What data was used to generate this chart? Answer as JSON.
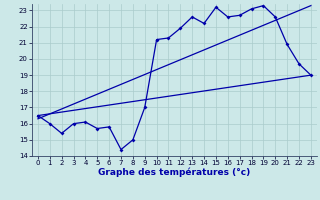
{
  "xlabel": "Graphe des températures (°c)",
  "bg_color": "#cce8e8",
  "line_color": "#0000aa",
  "grid_color": "#aacccc",
  "xlim": [
    -0.5,
    23.5
  ],
  "ylim": [
    14,
    23.4
  ],
  "xticks": [
    0,
    1,
    2,
    3,
    4,
    5,
    6,
    7,
    8,
    9,
    10,
    11,
    12,
    13,
    14,
    15,
    16,
    17,
    18,
    19,
    20,
    21,
    22,
    23
  ],
  "yticks": [
    14,
    15,
    16,
    17,
    18,
    19,
    20,
    21,
    22,
    23
  ],
  "main_x": [
    0,
    1,
    2,
    3,
    4,
    5,
    6,
    7,
    8,
    9,
    10,
    11,
    12,
    13,
    14,
    15,
    16,
    17,
    18,
    19,
    20,
    21,
    22,
    23
  ],
  "main_y": [
    16.5,
    16.0,
    15.4,
    16.0,
    16.1,
    15.7,
    15.8,
    14.4,
    15.0,
    17.0,
    21.2,
    21.3,
    21.9,
    22.6,
    22.2,
    23.2,
    22.6,
    22.7,
    23.1,
    23.3,
    22.6,
    20.9,
    19.7,
    19.0
  ],
  "line2_x": [
    0,
    23
  ],
  "line2_y": [
    16.5,
    19.0
  ],
  "line3_x": [
    0,
    23
  ],
  "line3_y": [
    16.3,
    23.3
  ],
  "tick_fontsize": 5.0,
  "xlabel_fontsize": 6.5
}
